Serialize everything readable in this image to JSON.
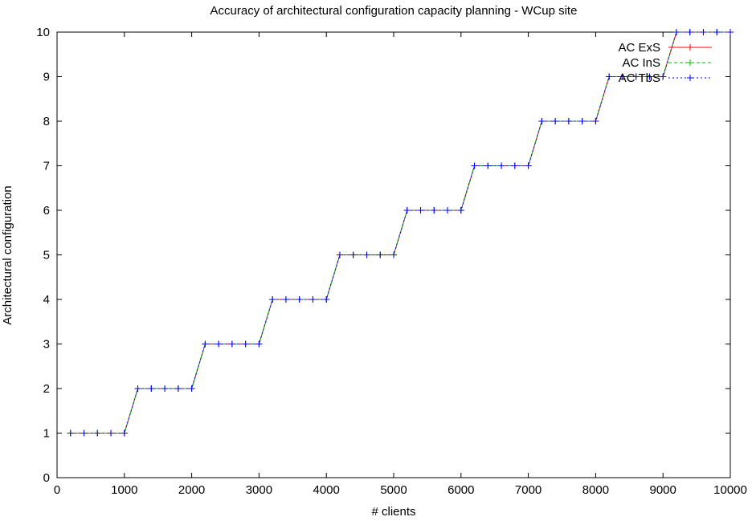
{
  "chart_data": {
    "type": "line",
    "title": "Accuracy of architectural configuration capacity planning - WCup site",
    "xlabel": "# clients",
    "ylabel": "Architectural configuration",
    "xlim": [
      0,
      10000
    ],
    "ylim": [
      0,
      10
    ],
    "xticks": [
      "0",
      "1000",
      "2000",
      "3000",
      "4000",
      "5000",
      "6000",
      "7000",
      "8000",
      "9000",
      "10000"
    ],
    "yticks": [
      "0",
      "1",
      "2",
      "3",
      "4",
      "5",
      "6",
      "7",
      "8",
      "9",
      "10"
    ],
    "grid": false,
    "legend": "top-right",
    "x": [
      200,
      400,
      600,
      800,
      1000,
      1200,
      1400,
      1600,
      1800,
      2000,
      2200,
      2400,
      2600,
      2800,
      3000,
      3200,
      3400,
      3600,
      3800,
      4000,
      4200,
      4400,
      4600,
      4800,
      5000,
      5200,
      5400,
      5600,
      5800,
      6000,
      6200,
      6400,
      6600,
      6800,
      7000,
      7200,
      7400,
      7600,
      7800,
      8000,
      8200,
      8400,
      8600,
      8800,
      9000,
      9200,
      9400,
      9600,
      9800,
      10000
    ],
    "series": [
      {
        "name": "AC ExS",
        "color": "#ff0000",
        "dash": "",
        "values": [
          1,
          1,
          1,
          1,
          1,
          2,
          2,
          2,
          2,
          2,
          3,
          3,
          3,
          3,
          3,
          4,
          4,
          4,
          4,
          4,
          5,
          5,
          5,
          5,
          5,
          6,
          6,
          6,
          6,
          6,
          7,
          7,
          7,
          7,
          7,
          8,
          8,
          8,
          8,
          8,
          9,
          9,
          9,
          9,
          9,
          10,
          10,
          10,
          10,
          10
        ]
      },
      {
        "name": "AC InS",
        "color": "#00c000",
        "dash": "4,3",
        "values": [
          1,
          1,
          1,
          1,
          1,
          2,
          2,
          2,
          2,
          2,
          3,
          3,
          3,
          3,
          3,
          4,
          4,
          4,
          4,
          4,
          5,
          5,
          5,
          5,
          5,
          6,
          6,
          6,
          6,
          6,
          7,
          7,
          7,
          7,
          7,
          8,
          8,
          8,
          8,
          8,
          9,
          9,
          9,
          9,
          9,
          10,
          10,
          10,
          10,
          10
        ]
      },
      {
        "name": "AC TbS",
        "color": "#0000ff",
        "dash": "2,3",
        "values": [
          1,
          1,
          1,
          1,
          1,
          2,
          2,
          2,
          2,
          2,
          3,
          3,
          3,
          3,
          3,
          4,
          4,
          4,
          4,
          4,
          5,
          5,
          5,
          5,
          5,
          6,
          6,
          6,
          6,
          6,
          7,
          7,
          7,
          7,
          7,
          8,
          8,
          8,
          8,
          8,
          9,
          9,
          9,
          9,
          9,
          10,
          10,
          10,
          10,
          10
        ]
      }
    ]
  }
}
